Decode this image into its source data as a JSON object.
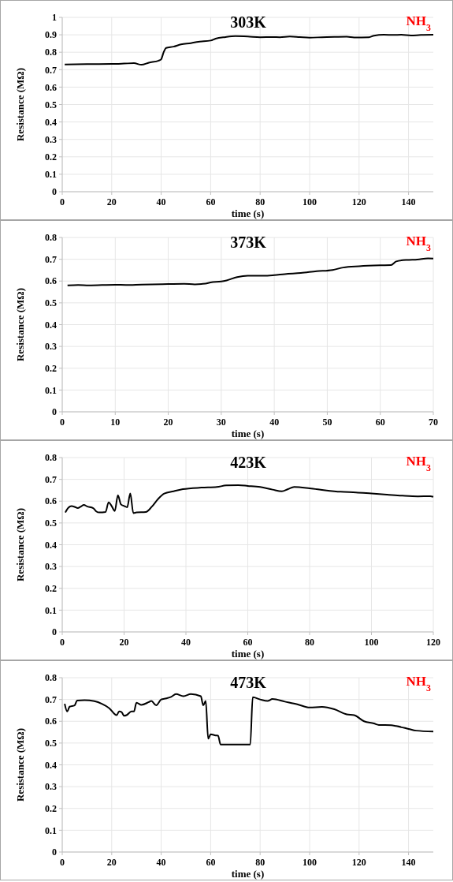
{
  "chart_data": [
    {
      "type": "line",
      "title": "303K",
      "xlabel": "time (s)",
      "ylabel": "Resistance (MΩ)",
      "annotations": [
        "NH$_{3}$"
      ],
      "xlim": [
        0,
        150
      ],
      "ylim": [
        0,
        1
      ],
      "xticks": [
        0,
        20,
        40,
        60,
        80,
        100,
        120,
        140
      ],
      "yticks": [
        0,
        0.1,
        0.2,
        0.3,
        0.4,
        0.5,
        0.6,
        0.7,
        0.8,
        0.9,
        1
      ],
      "grid": true,
      "x": [
        1,
        10,
        20,
        25,
        29,
        32,
        35,
        39,
        40,
        41,
        42,
        45,
        48,
        52,
        55,
        60,
        62,
        66,
        70,
        75,
        80,
        85,
        88,
        92,
        96,
        100,
        105,
        110,
        115,
        118,
        124,
        126,
        130,
        134,
        137,
        141,
        145,
        150
      ],
      "series": [
        {
          "color": "#000000",
          "values": [
            0.73,
            0.732,
            0.733,
            0.735,
            0.737,
            0.728,
            0.74,
            0.752,
            0.76,
            0.8,
            0.825,
            0.832,
            0.845,
            0.852,
            0.86,
            0.867,
            0.878,
            0.887,
            0.892,
            0.89,
            0.886,
            0.887,
            0.886,
            0.89,
            0.887,
            0.884,
            0.886,
            0.888,
            0.889,
            0.885,
            0.886,
            0.895,
            0.9,
            0.899,
            0.9,
            0.896,
            0.899,
            0.9
          ]
        }
      ]
    },
    {
      "type": "line",
      "title": "373K",
      "xlabel": "time (s)",
      "ylabel": "Resistance (MΩ)",
      "annotations": [
        "NH$_{3}$"
      ],
      "xlim": [
        0,
        70
      ],
      "ylim": [
        0,
        0.8
      ],
      "xticks": [
        0,
        10,
        20,
        30,
        40,
        50,
        60,
        70
      ],
      "yticks": [
        0,
        0.1,
        0.2,
        0.3,
        0.4,
        0.5,
        0.6,
        0.7,
        0.8
      ],
      "grid": true,
      "x": [
        1,
        3,
        5,
        10,
        12,
        15,
        20,
        23,
        25,
        27,
        28,
        30,
        31,
        33,
        35,
        38,
        40,
        42,
        45,
        48,
        51,
        53,
        56,
        60,
        62,
        63,
        65,
        67,
        69,
        70
      ],
      "series": [
        {
          "color": "#000000",
          "values": [
            0.58,
            0.582,
            0.58,
            0.583,
            0.582,
            0.584,
            0.586,
            0.587,
            0.585,
            0.588,
            0.594,
            0.598,
            0.603,
            0.618,
            0.624,
            0.624,
            0.627,
            0.632,
            0.637,
            0.645,
            0.651,
            0.662,
            0.668,
            0.672,
            0.673,
            0.69,
            0.697,
            0.699,
            0.704,
            0.703
          ]
        }
      ]
    },
    {
      "type": "line",
      "title": "423K",
      "xlabel": "time (s)",
      "ylabel": "Resistance (MΩ)",
      "annotations": [
        "NH$_{3}$"
      ],
      "xlim": [
        0,
        120
      ],
      "ylim": [
        0,
        0.8
      ],
      "xticks": [
        0,
        20,
        40,
        60,
        80,
        100,
        120
      ],
      "yticks": [
        0,
        0.1,
        0.2,
        0.3,
        0.4,
        0.5,
        0.6,
        0.7,
        0.8
      ],
      "grid": true,
      "x": [
        1,
        2,
        3,
        4,
        5,
        6,
        7,
        8,
        10,
        11,
        12,
        14,
        15,
        16,
        17,
        18,
        19,
        20,
        21,
        22,
        23,
        24,
        27,
        29,
        31,
        33,
        36,
        39,
        45,
        50,
        53,
        57,
        60,
        64,
        68,
        71,
        73,
        75,
        80,
        85,
        90,
        95,
        100,
        105,
        110,
        115,
        119,
        120
      ],
      "series": [
        {
          "color": "#000000",
          "values": [
            0.548,
            0.57,
            0.577,
            0.574,
            0.568,
            0.575,
            0.583,
            0.576,
            0.568,
            0.553,
            0.548,
            0.55,
            0.595,
            0.577,
            0.555,
            0.627,
            0.585,
            0.578,
            0.572,
            0.635,
            0.545,
            0.548,
            0.55,
            0.575,
            0.61,
            0.635,
            0.645,
            0.655,
            0.662,
            0.665,
            0.672,
            0.673,
            0.67,
            0.665,
            0.653,
            0.645,
            0.655,
            0.665,
            0.659,
            0.65,
            0.643,
            0.64,
            0.635,
            0.63,
            0.625,
            0.622,
            0.623,
            0.62
          ]
        }
      ]
    },
    {
      "type": "line",
      "title": "473K",
      "xlabel": "time (s)",
      "ylabel": "Resistance (MΩ)",
      "annotations": [
        "NH$_{3}$"
      ],
      "xlim": [
        0,
        150
      ],
      "ylim": [
        0,
        0.8
      ],
      "xticks": [
        0,
        20,
        40,
        60,
        80,
        100,
        120,
        140
      ],
      "yticks": [
        0,
        0.1,
        0.2,
        0.3,
        0.4,
        0.5,
        0.6,
        0.7,
        0.8
      ],
      "grid": true,
      "x": [
        1,
        2,
        3,
        5,
        6,
        9,
        13,
        16,
        19,
        22,
        23,
        24,
        25,
        26,
        28,
        29,
        30,
        32,
        35,
        36,
        38,
        40,
        42,
        44,
        46,
        49,
        52,
        56,
        57,
        58,
        59,
        60,
        62,
        63,
        64,
        76,
        77,
        80,
        83,
        85,
        90,
        95,
        100,
        105,
        110,
        115,
        118,
        122,
        126,
        128,
        133,
        135,
        140,
        143,
        150
      ],
      "series": [
        {
          "color": "#000000",
          "values": [
            0.68,
            0.645,
            0.667,
            0.673,
            0.695,
            0.697,
            0.692,
            0.68,
            0.66,
            0.628,
            0.645,
            0.642,
            0.625,
            0.628,
            0.645,
            0.645,
            0.685,
            0.675,
            0.688,
            0.693,
            0.673,
            0.7,
            0.705,
            0.712,
            0.725,
            0.715,
            0.725,
            0.715,
            0.673,
            0.693,
            0.52,
            0.54,
            0.535,
            0.534,
            0.493,
            0.493,
            0.71,
            0.7,
            0.693,
            0.702,
            0.69,
            0.678,
            0.663,
            0.666,
            0.655,
            0.632,
            0.628,
            0.6,
            0.59,
            0.583,
            0.582,
            0.578,
            0.565,
            0.557,
            0.553
          ]
        }
      ]
    }
  ]
}
